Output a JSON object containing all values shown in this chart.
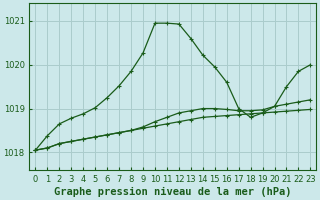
{
  "background_color": "#cce8ea",
  "grid_color": "#aacccc",
  "line_color": "#1a5c1a",
  "title": "Graphe pression niveau de la mer (hPa)",
  "title_fontsize": 7.5,
  "xmin": -0.5,
  "xmax": 23.5,
  "ymin": 1017.6,
  "ymax": 1021.4,
  "yticks": [
    1018,
    1019,
    1020,
    1021
  ],
  "xticks": [
    0,
    1,
    2,
    3,
    4,
    5,
    6,
    7,
    8,
    9,
    10,
    11,
    12,
    13,
    14,
    15,
    16,
    17,
    18,
    19,
    20,
    21,
    22,
    23
  ],
  "tick_fontsize": 6,
  "series1_x": [
    0,
    1,
    2,
    3,
    4,
    5,
    6,
    7,
    8,
    9,
    10,
    11,
    12,
    13,
    14,
    15,
    16,
    17,
    18,
    19,
    20,
    21,
    22,
    23
  ],
  "series1_y": [
    1018.05,
    1018.1,
    1018.2,
    1018.25,
    1018.3,
    1018.35,
    1018.4,
    1018.45,
    1018.5,
    1018.55,
    1018.6,
    1018.65,
    1018.7,
    1018.75,
    1018.8,
    1018.82,
    1018.84,
    1018.86,
    1018.88,
    1018.9,
    1018.92,
    1018.94,
    1018.96,
    1018.98
  ],
  "series2_x": [
    0,
    1,
    2,
    3,
    4,
    5,
    6,
    7,
    8,
    9,
    10,
    11,
    12,
    13,
    14,
    15,
    16,
    17,
    18,
    19,
    20,
    21,
    22,
    23
  ],
  "series2_y": [
    1018.05,
    1018.1,
    1018.2,
    1018.25,
    1018.3,
    1018.35,
    1018.4,
    1018.45,
    1018.5,
    1018.58,
    1018.7,
    1018.8,
    1018.9,
    1018.95,
    1019.0,
    1019.0,
    1018.98,
    1018.95,
    1018.95,
    1018.97,
    1019.05,
    1019.1,
    1019.15,
    1019.2
  ],
  "series3_x": [
    0,
    1,
    2,
    3,
    4,
    5,
    6,
    7,
    8,
    9,
    10,
    11,
    12,
    13,
    14,
    15,
    16,
    17,
    18,
    19,
    20,
    21,
    22,
    23
  ],
  "series3_y": [
    1018.05,
    1018.38,
    1018.65,
    1018.78,
    1018.88,
    1019.02,
    1019.25,
    1019.52,
    1019.85,
    1020.27,
    1020.95,
    1020.95,
    1020.93,
    1020.6,
    1020.22,
    1019.95,
    1019.6,
    1019.0,
    1018.8,
    1018.9,
    1019.05,
    1019.5,
    1019.85,
    1020.0
  ]
}
